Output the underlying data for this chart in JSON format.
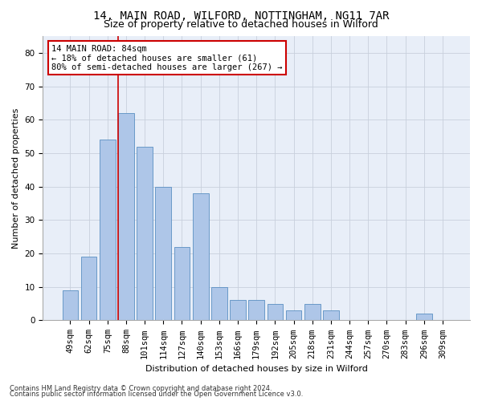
{
  "title1": "14, MAIN ROAD, WILFORD, NOTTINGHAM, NG11 7AR",
  "title2": "Size of property relative to detached houses in Wilford",
  "xlabel": "Distribution of detached houses by size in Wilford",
  "ylabel": "Number of detached properties",
  "categories": [
    "49sqm",
    "62sqm",
    "75sqm",
    "88sqm",
    "101sqm",
    "114sqm",
    "127sqm",
    "140sqm",
    "153sqm",
    "166sqm",
    "179sqm",
    "192sqm",
    "205sqm",
    "218sqm",
    "231sqm",
    "244sqm",
    "257sqm",
    "270sqm",
    "283sqm",
    "296sqm",
    "309sqm"
  ],
  "values": [
    9,
    19,
    54,
    62,
    52,
    40,
    22,
    38,
    10,
    6,
    6,
    5,
    3,
    5,
    3,
    0,
    0,
    0,
    0,
    2,
    0
  ],
  "bar_color": "#aec6e8",
  "bar_edge_color": "#5a8fc2",
  "vline_index": 3,
  "vline_color": "#cc0000",
  "annotation_text": "14 MAIN ROAD: 84sqm\n← 18% of detached houses are smaller (61)\n80% of semi-detached houses are larger (267) →",
  "annotation_box_color": "#ffffff",
  "annotation_box_edge": "#cc0000",
  "ylim": [
    0,
    85
  ],
  "yticks": [
    0,
    10,
    20,
    30,
    40,
    50,
    60,
    70,
    80
  ],
  "footer1": "Contains HM Land Registry data © Crown copyright and database right 2024.",
  "footer2": "Contains public sector information licensed under the Open Government Licence v3.0.",
  "bg_color": "#e8eef8",
  "title1_fontsize": 10,
  "title2_fontsize": 9,
  "annotation_fontsize": 7.5,
  "axis_fontsize": 8,
  "tick_fontsize": 7.5,
  "footer_fontsize": 6
}
